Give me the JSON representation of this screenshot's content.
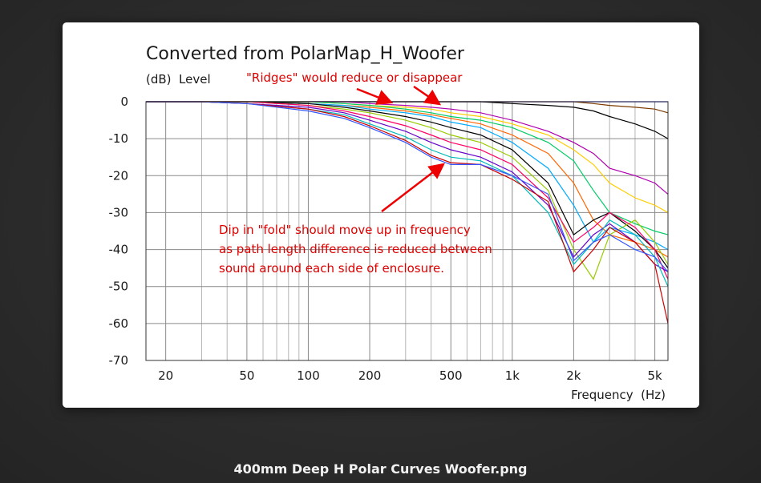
{
  "viewer": {
    "caption": "400mm Deep H Polar Curves Woofer.png"
  },
  "chart_data": {
    "type": "line",
    "title": "Converted from PolarMap_H_Woofer",
    "ylabel": "(dB)  Level",
    "xlabel": "Frequency  (Hz)",
    "x_scale": "log",
    "xlim": [
      16,
      5800
    ],
    "ylim": [
      -70,
      0
    ],
    "x_ticks": [
      {
        "value": 20,
        "label": "20"
      },
      {
        "value": 50,
        "label": "50"
      },
      {
        "value": 100,
        "label": "100"
      },
      {
        "value": 200,
        "label": "200"
      },
      {
        "value": 500,
        "label": "500"
      },
      {
        "value": 1000,
        "label": "1k"
      },
      {
        "value": 2000,
        "label": "2k"
      },
      {
        "value": 5000,
        "label": "5k"
      }
    ],
    "y_ticks": [
      0,
      -10,
      -20,
      -30,
      -40,
      -50,
      -60,
      -70
    ],
    "grid": true,
    "x": [
      16,
      30,
      50,
      100,
      150,
      200,
      300,
      400,
      500,
      700,
      1000,
      1500,
      2000,
      2500,
      3000,
      4000,
      5000,
      5800
    ],
    "series": [
      {
        "color": "#0000ff",
        "values": [
          0,
          0,
          0,
          0,
          0,
          0,
          0,
          0,
          0,
          0,
          0,
          0,
          0,
          0,
          0,
          0,
          0,
          0
        ]
      },
      {
        "color": "#7b3a00",
        "values": [
          0,
          0,
          0,
          0,
          0,
          0,
          0,
          0,
          0,
          0,
          0,
          0,
          0,
          -0.5,
          -1,
          -1.5,
          -2,
          -3
        ]
      },
      {
        "color": "#000000",
        "values": [
          0,
          0,
          0,
          0,
          0,
          0,
          0,
          0,
          0,
          0,
          -0.5,
          -1,
          -1.5,
          -2.5,
          -4,
          -6,
          -8,
          -10
        ]
      },
      {
        "color": "#b000b0",
        "values": [
          0,
          0,
          0,
          0,
          0,
          -0.5,
          -1,
          -1.5,
          -2,
          -3,
          -5,
          -8,
          -11,
          -14,
          -18,
          -20,
          -22,
          -25
        ]
      },
      {
        "color": "#ffcc00",
        "values": [
          0,
          0,
          0,
          0,
          -0.5,
          -1,
          -1.5,
          -2,
          -3,
          -4,
          -6,
          -9,
          -13,
          -17,
          -22,
          -26,
          -28,
          -30
        ]
      },
      {
        "color": "#00cc66",
        "values": [
          0,
          0,
          0,
          0,
          -0.5,
          -1,
          -2,
          -3,
          -4,
          -5,
          -7,
          -11,
          -16,
          -24,
          -30,
          -33,
          -35,
          -36
        ]
      },
      {
        "color": "#ff6600",
        "values": [
          0,
          0,
          0,
          -0.5,
          -1,
          -1.5,
          -2.5,
          -3.5,
          -4.5,
          -6,
          -9,
          -14,
          -22,
          -32,
          -36,
          -38,
          -40,
          -42
        ]
      },
      {
        "color": "#00aaff",
        "values": [
          0,
          0,
          0,
          -0.5,
          -1,
          -2,
          -3,
          -4,
          -5.5,
          -7,
          -11,
          -18,
          -28,
          -38,
          -34,
          -36,
          -38,
          -40
        ]
      },
      {
        "color": "#000000",
        "values": [
          0,
          0,
          0,
          -0.5,
          -1.5,
          -2.5,
          -4,
          -5.5,
          -7,
          -9,
          -13,
          -22,
          -36,
          -32,
          -30,
          -35,
          -40,
          -45
        ]
      },
      {
        "color": "#99cc00",
        "values": [
          0,
          0,
          0,
          -1,
          -2,
          -3,
          -5,
          -7,
          -9,
          -11,
          -15,
          -24,
          -40,
          -48,
          -36,
          -32,
          -38,
          -44
        ]
      },
      {
        "color": "#ff0066",
        "values": [
          0,
          0,
          0,
          -1,
          -2.5,
          -4,
          -6.5,
          -9,
          -11,
          -13,
          -17,
          -26,
          -38,
          -34,
          -30,
          -34,
          -40,
          -48
        ]
      },
      {
        "color": "#6600cc",
        "values": [
          0,
          0,
          -0.5,
          -1.5,
          -3,
          -5,
          -8,
          -11,
          -13,
          -15,
          -19,
          -28,
          -42,
          -36,
          -33,
          -38,
          -44,
          -46
        ]
      },
      {
        "color": "#00bbbb",
        "values": [
          0,
          0,
          -0.5,
          -2,
          -3.5,
          -6,
          -9.5,
          -13,
          -15,
          -16,
          -20,
          -30,
          -44,
          -38,
          -32,
          -36,
          -42,
          -50
        ]
      },
      {
        "color": "#cc0000",
        "values": [
          0,
          0,
          -0.5,
          -2,
          -4,
          -6.5,
          -10.5,
          -14.5,
          -16.5,
          -17,
          -21,
          -27,
          -46,
          -40,
          -34,
          -38,
          -44,
          -60
        ]
      },
      {
        "color": "#3355ff",
        "values": [
          0,
          0,
          -0.5,
          -2.5,
          -4.5,
          -7,
          -11,
          -15,
          -17,
          -17,
          -20,
          -25,
          -43,
          -38,
          -36,
          -40,
          -42,
          -46
        ]
      }
    ],
    "annotations": [
      {
        "text": "\"Ridges\" would reduce or disappear",
        "color": "#dd0000"
      },
      {
        "text": "Dip in \"fold\" should move up in frequency",
        "color": "#dd0000"
      },
      {
        "text": "as path length difference is reduced between",
        "color": "#dd0000"
      },
      {
        "text": "sound around each side of enclosure.",
        "color": "#dd0000"
      }
    ]
  }
}
